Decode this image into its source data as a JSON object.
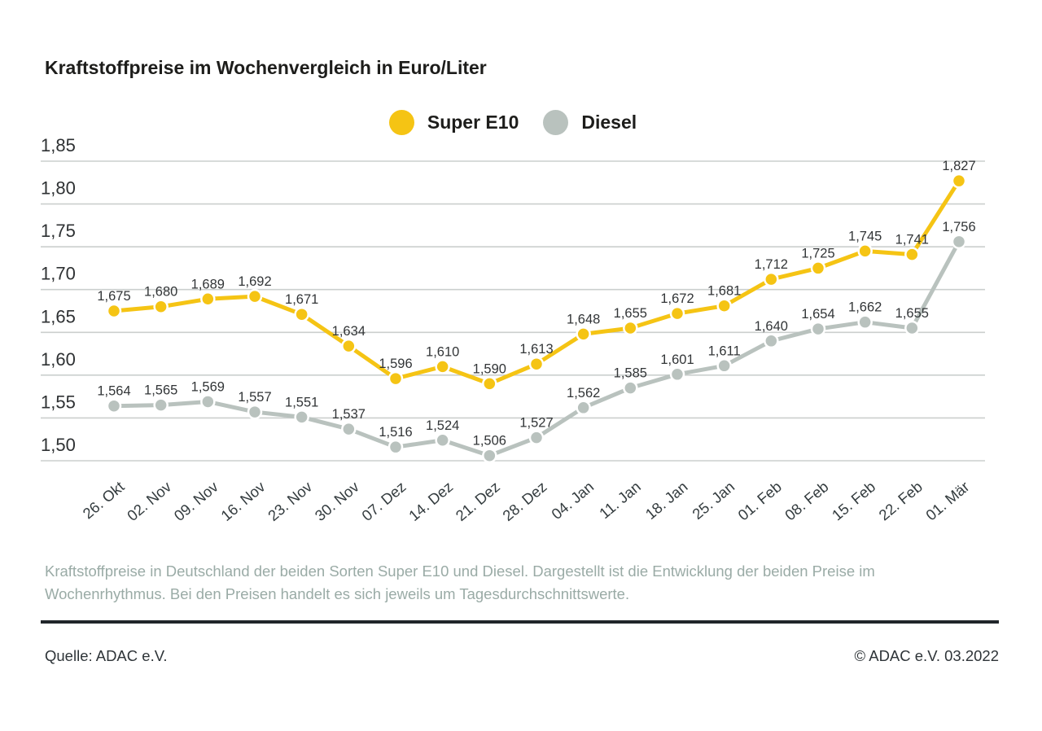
{
  "title": "Kraftstoffpreise im Wochenvergleich in Euro/Liter",
  "chart_data": {
    "type": "line",
    "categories": [
      "26. Okt",
      "02. Nov",
      "09. Nov",
      "16. Nov",
      "23. Nov",
      "30. Nov",
      "07. Dez",
      "14. Dez",
      "21. Dez",
      "28. Dez",
      "04. Jan",
      "11. Jan",
      "18. Jan",
      "25. Jan",
      "01. Feb",
      "08. Feb",
      "15. Feb",
      "22. Feb",
      "01. Mär"
    ],
    "series": [
      {
        "name": "Super E10",
        "color": "#F5C414",
        "values": [
          1.675,
          1.68,
          1.689,
          1.692,
          1.671,
          1.634,
          1.596,
          1.61,
          1.59,
          1.613,
          1.648,
          1.655,
          1.672,
          1.681,
          1.712,
          1.725,
          1.745,
          1.741,
          1.827
        ]
      },
      {
        "name": "Diesel",
        "color": "#B9C2BE",
        "values": [
          1.564,
          1.565,
          1.569,
          1.557,
          1.551,
          1.537,
          1.516,
          1.524,
          1.506,
          1.527,
          1.562,
          1.585,
          1.601,
          1.611,
          1.64,
          1.654,
          1.662,
          1.655,
          1.756
        ]
      }
    ],
    "title": "Kraftstoffpreise im Wochenvergleich in Euro/Liter",
    "xlabel": "",
    "ylabel": "",
    "ylim": [
      1.5,
      1.85
    ],
    "yticks": [
      1.85,
      1.8,
      1.75,
      1.7,
      1.65,
      1.6,
      1.55,
      1.5
    ],
    "decimal_separator": ",",
    "grid": true,
    "legend_position": "top-center",
    "value_labels": true,
    "gridline_color": "#cbcfce",
    "axis_text_color": "#2e3133",
    "value_label_color": "#323537"
  },
  "caption": "Kraftstoffpreise in Deutschland der beiden Sorten Super E10 und Diesel. Dargestellt ist die Entwicklung der beiden Preise im Wochenrhythmus. Bei den Preisen handelt es sich jeweils um Tagesdurchschnittswerte.",
  "footer": {
    "source": "Quelle: ADAC e.V.",
    "copyright": "© ADAC e.V. 03.2022"
  }
}
